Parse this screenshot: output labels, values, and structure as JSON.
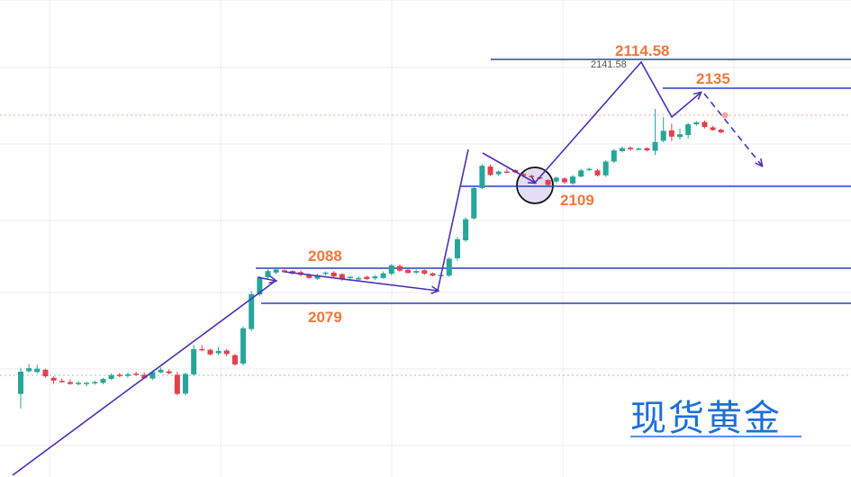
{
  "chart_data": {
    "type": "candlestick",
    "instrument": "现货黄金",
    "annotation_small": "2141.58",
    "colors": {
      "up": "#26a69a",
      "down": "#e0424b",
      "level": "#2a3fc4",
      "trend": "#4b2fb8",
      "label": "#f0783c",
      "grid": "#eeeeee",
      "highlight": "#e3ddf6"
    },
    "levels": [
      {
        "value": 2079,
        "label": "2079"
      },
      {
        "value": 2088,
        "label": "2088"
      },
      {
        "value": 2109,
        "label": "2109"
      },
      {
        "value": 2135,
        "label": "2135"
      },
      {
        "value": 2114.58,
        "label": "2114.58"
      }
    ],
    "candles": [
      [
        2055.4,
        2061.2,
        2051.6,
        2062.2
      ],
      [
        2061.3,
        2062.1,
        2061.0,
        2063.2
      ],
      [
        2061.1,
        2062.0,
        2060.8,
        2063.0
      ],
      [
        2061.7,
        2060.0,
        2059.6,
        2062.0
      ],
      [
        2059.6,
        2058.9,
        2058.0,
        2060.0
      ],
      [
        2058.8,
        2058.7,
        2058.3,
        2059.4
      ],
      [
        2058.5,
        2058.0,
        2057.8,
        2059.2
      ],
      [
        2058.1,
        2058.3,
        2057.6,
        2058.8
      ],
      [
        2058.0,
        2058.3,
        2057.4,
        2058.6
      ],
      [
        2058.2,
        2058.5,
        2057.8,
        2058.9
      ],
      [
        2058.3,
        2059.3,
        2057.9,
        2059.6
      ],
      [
        2059.3,
        2060.3,
        2059.0,
        2060.8
      ],
      [
        2060.4,
        2060.2,
        2059.7,
        2060.9
      ],
      [
        2060.1,
        2060.5,
        2059.6,
        2061.0
      ],
      [
        2060.7,
        2060.6,
        2060.1,
        2061.2
      ],
      [
        2060.4,
        2059.5,
        2059.3,
        2061.0
      ],
      [
        2059.4,
        2061.1,
        2059.0,
        2061.5
      ],
      [
        2061.0,
        2061.7,
        2060.8,
        2062.3
      ],
      [
        2061.3,
        2060.8,
        2060.5,
        2061.8
      ],
      [
        2060.4,
        2055.4,
        2055.0,
        2061.2
      ],
      [
        2055.5,
        2060.6,
        2055.1,
        2061.0
      ],
      [
        2060.5,
        2067.1,
        2060.2,
        2068.2
      ],
      [
        2067.1,
        2066.8,
        2066.5,
        2068.1
      ],
      [
        2066.9,
        2065.7,
        2065.4,
        2067.2
      ],
      [
        2066.0,
        2066.6,
        2065.5,
        2067.7
      ],
      [
        2066.7,
        2065.8,
        2065.2,
        2067.1
      ],
      [
        2065.5,
        2063.1,
        2062.7,
        2065.9
      ],
      [
        2063.3,
        2072.5,
        2062.8,
        2073.0
      ],
      [
        2072.3,
        2081.4,
        2071.8,
        2082.2
      ],
      [
        2081.3,
        2085.6,
        2080.9,
        2086.0
      ],
      [
        2085.8,
        2087.4,
        2085.3,
        2088.3
      ],
      [
        2087.0,
        2087.8,
        2086.6,
        2088.5
      ],
      [
        2087.6,
        2087.1,
        2086.9,
        2087.8
      ],
      [
        2087.4,
        2086.7,
        2086.5,
        2087.6
      ],
      [
        2087.1,
        2086.4,
        2086.0,
        2087.6
      ],
      [
        2086.5,
        2085.6,
        2085.4,
        2086.8
      ],
      [
        2085.4,
        2086.3,
        2085.1,
        2086.7
      ],
      [
        2086.7,
        2087.0,
        2086.2,
        2087.3
      ],
      [
        2087.0,
        2086.0,
        2085.7,
        2087.4
      ],
      [
        2086.6,
        2085.2,
        2084.8,
        2086.8
      ],
      [
        2085.7,
        2085.9,
        2085.1,
        2086.1
      ],
      [
        2085.2,
        2085.6,
        2084.8,
        2086.0
      ],
      [
        2085.9,
        2085.3,
        2085.1,
        2086.2
      ],
      [
        2085.5,
        2086.0,
        2085.1,
        2086.3
      ],
      [
        2085.6,
        2086.8,
        2085.4,
        2087.3
      ],
      [
        2086.7,
        2088.9,
        2086.2,
        2089.2
      ],
      [
        2088.7,
        2087.5,
        2087.2,
        2089.1
      ],
      [
        2087.7,
        2086.9,
        2086.7,
        2088.0
      ],
      [
        2087.0,
        2087.4,
        2086.6,
        2087.8
      ],
      [
        2087.6,
        2086.7,
        2086.4,
        2087.8
      ],
      [
        2086.8,
        2086.2,
        2086.0,
        2087.0
      ],
      [
        2086.2,
        2086.4,
        2085.9,
        2086.6
      ],
      [
        2086.2,
        2090.6,
        2085.8,
        2091.0
      ],
      [
        2090.7,
        2095.7,
        2090.1,
        2096.3
      ],
      [
        2095.4,
        2100.9,
        2095.0,
        2101.4
      ],
      [
        2101.1,
        2109.0,
        2100.8,
        2109.4
      ],
      [
        2109.0,
        2114.8,
        2108.7,
        2115.2
      ],
      [
        2114.6,
        2112.4,
        2112.1,
        2115.1
      ],
      [
        2112.6,
        2113.3,
        2112.2,
        2113.6
      ],
      [
        2113.3,
        2113.1,
        2112.9,
        2114.1
      ],
      [
        2113.7,
        2113.1,
        2112.8,
        2113.9
      ],
      [
        2112.7,
        2112.2,
        2111.8,
        2113.0
      ],
      [
        2112.2,
        2112.0,
        2111.6,
        2112.5
      ],
      [
        2111.8,
        2111.6,
        2111.3,
        2112.0
      ],
      [
        2111.1,
        2109.8,
        2109.6,
        2111.3
      ],
      [
        2110.7,
        2111.7,
        2110.3,
        2112.0
      ],
      [
        2111.5,
        2110.5,
        2110.1,
        2111.8
      ],
      [
        2110.2,
        2112.0,
        2109.8,
        2112.4
      ],
      [
        2112.0,
        2113.6,
        2111.8,
        2114.0
      ],
      [
        2113.9,
        2114.0,
        2113.5,
        2114.3
      ],
      [
        2113.6,
        2112.3,
        2112.0,
        2114.0
      ],
      [
        2112.3,
        2115.9,
        2111.9,
        2116.3
      ],
      [
        2115.9,
        2118.8,
        2115.5,
        2119.2
      ],
      [
        2118.6,
        2119.4,
        2118.2,
        2119.8
      ],
      [
        2119.5,
        2119.1,
        2118.7,
        2119.9
      ],
      [
        2119.2,
        2119.3,
        2118.9,
        2119.5
      ],
      [
        2119.4,
        2118.8,
        2118.5,
        2119.6
      ],
      [
        2118.7,
        2121.0,
        2117.6,
        2129.6
      ],
      [
        2121.3,
        2123.9,
        2120.9,
        2127.5
      ],
      [
        2124.0,
        2122.4,
        2121.2,
        2125.8
      ],
      [
        2122.3,
        2123.0,
        2121.6,
        2124.5
      ],
      [
        2122.8,
        2125.6,
        2121.9,
        2126.0
      ],
      [
        2125.6,
        2126.1,
        2125.2,
        2126.5
      ],
      [
        2126.2,
        2124.9,
        2124.5,
        2126.6
      ],
      [
        2124.8,
        2124.1,
        2123.9,
        2125.2
      ],
      [
        2124.2,
        2123.5,
        2123.2,
        2124.5
      ]
    ]
  }
}
